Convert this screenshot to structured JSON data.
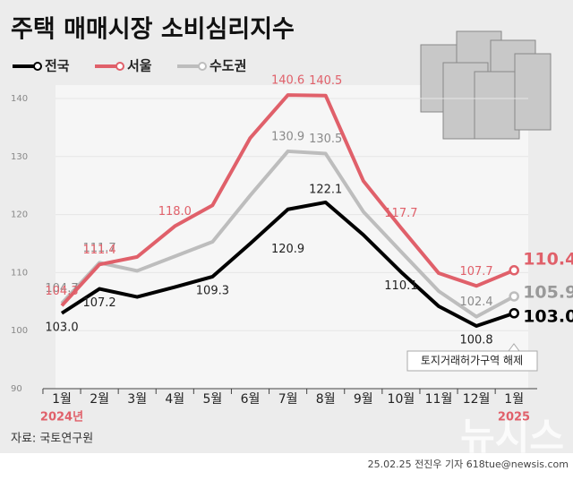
{
  "chart_data": {
    "type": "line",
    "title": "주택 매매시장 소비심리지수",
    "categories": [
      "1월",
      "2월",
      "3월",
      "4월",
      "5월",
      "6월",
      "7월",
      "8월",
      "9월",
      "10월",
      "11월",
      "12월",
      "1월"
    ],
    "year_start": "2024년",
    "year_end": "2025",
    "series": [
      {
        "name": "전국",
        "color": "#000000",
        "label_color": "#222222",
        "values": [
          103.0,
          107.2,
          105.8,
          107.5,
          109.3,
          115.0,
          120.9,
          122.1,
          116.5,
          110.1,
          104.2,
          100.8,
          103.0
        ],
        "value_labels": [
          "103.0",
          "107.2",
          null,
          null,
          "109.3",
          null,
          "120.9",
          "122.1",
          null,
          "110.1",
          null,
          "100.8",
          "103.0"
        ]
      },
      {
        "name": "서울",
        "color": "#e0606a",
        "label_color": "#e0606a",
        "values": [
          104.3,
          111.4,
          112.7,
          118.0,
          121.6,
          133.2,
          140.6,
          140.5,
          125.8,
          117.7,
          109.9,
          107.7,
          110.4
        ],
        "value_labels": [
          "104.3",
          "111.4",
          null,
          "118.0",
          null,
          null,
          "140.6",
          "140.5",
          null,
          "117.7",
          null,
          "107.7",
          "110.4"
        ]
      },
      {
        "name": "수도권",
        "color": "#bdbdbd",
        "label_color": "#8a8a8a",
        "values": [
          104.7,
          111.7,
          110.3,
          112.8,
          115.3,
          123.3,
          130.9,
          130.5,
          120.5,
          113.6,
          106.8,
          102.4,
          105.9
        ],
        "value_labels": [
          "104.7",
          "111.7",
          null,
          null,
          null,
          null,
          "130.9",
          "130.5",
          null,
          null,
          null,
          "102.4",
          "105.9"
        ]
      }
    ],
    "ylim": [
      90,
      142
    ],
    "yticks": [
      90,
      100,
      110,
      120,
      130,
      140
    ],
    "annotation": "토지거래허가구역 해제",
    "source": "자료: 국토연구원",
    "credit": "25.02.25 전진우 기자 618tue@newsis.com",
    "watermark": "뉴시스"
  }
}
